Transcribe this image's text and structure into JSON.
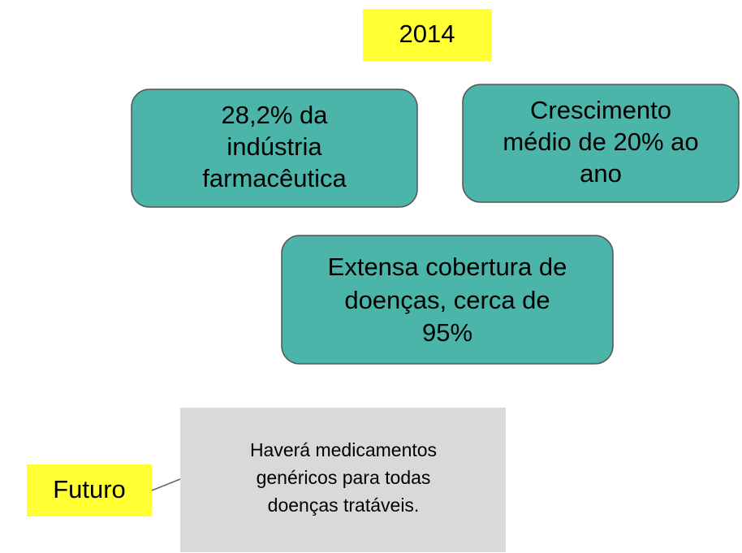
{
  "year_label": "2014",
  "boxes": [
    {
      "lines": [
        "28,2% da",
        "indústria",
        "farmacêutica"
      ]
    },
    {
      "lines": [
        "Crescimento",
        "médio de 20% ao",
        "ano"
      ]
    },
    {
      "lines": [
        "Extensa cobertura de",
        "doenças, cerca de",
        "95%"
      ]
    }
  ],
  "future_label": "Futuro",
  "note": {
    "lines": [
      "Haverá medicamentos",
      "genéricos para todas",
      "doenças tratáveis."
    ]
  }
}
